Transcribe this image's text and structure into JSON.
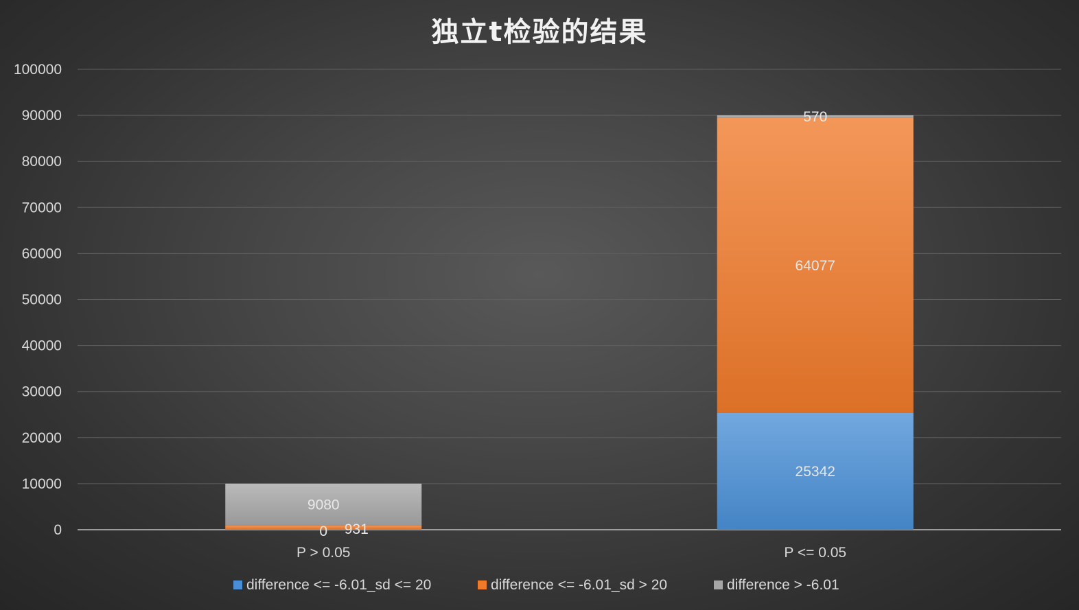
{
  "chart_data": {
    "type": "bar",
    "stacked": true,
    "title": "独立t检验的结果",
    "categories": [
      "P > 0.05",
      "P <= 0.05"
    ],
    "series": [
      {
        "name": "difference <= -6.01_sd <= 20",
        "color": "#4a8fd6",
        "values": [
          0,
          25342
        ]
      },
      {
        "name": "difference <= -6.01_sd > 20",
        "color": "#ef7a2a",
        "values": [
          931,
          64077
        ]
      },
      {
        "name": "difference > -6.01",
        "color": "#a6a6a6",
        "values": [
          9080,
          570
        ]
      }
    ],
    "data_labels": [
      [
        "0",
        "25342"
      ],
      [
        "931",
        "64077"
      ],
      [
        "9080",
        "570"
      ]
    ],
    "y_ticks": [
      "0",
      "10000",
      "20000",
      "30000",
      "40000",
      "50000",
      "60000",
      "70000",
      "80000",
      "90000",
      "100000"
    ],
    "ylim": [
      0,
      100000
    ],
    "xlabel": "",
    "ylabel": "",
    "grid": true,
    "legend_position": "bottom"
  }
}
